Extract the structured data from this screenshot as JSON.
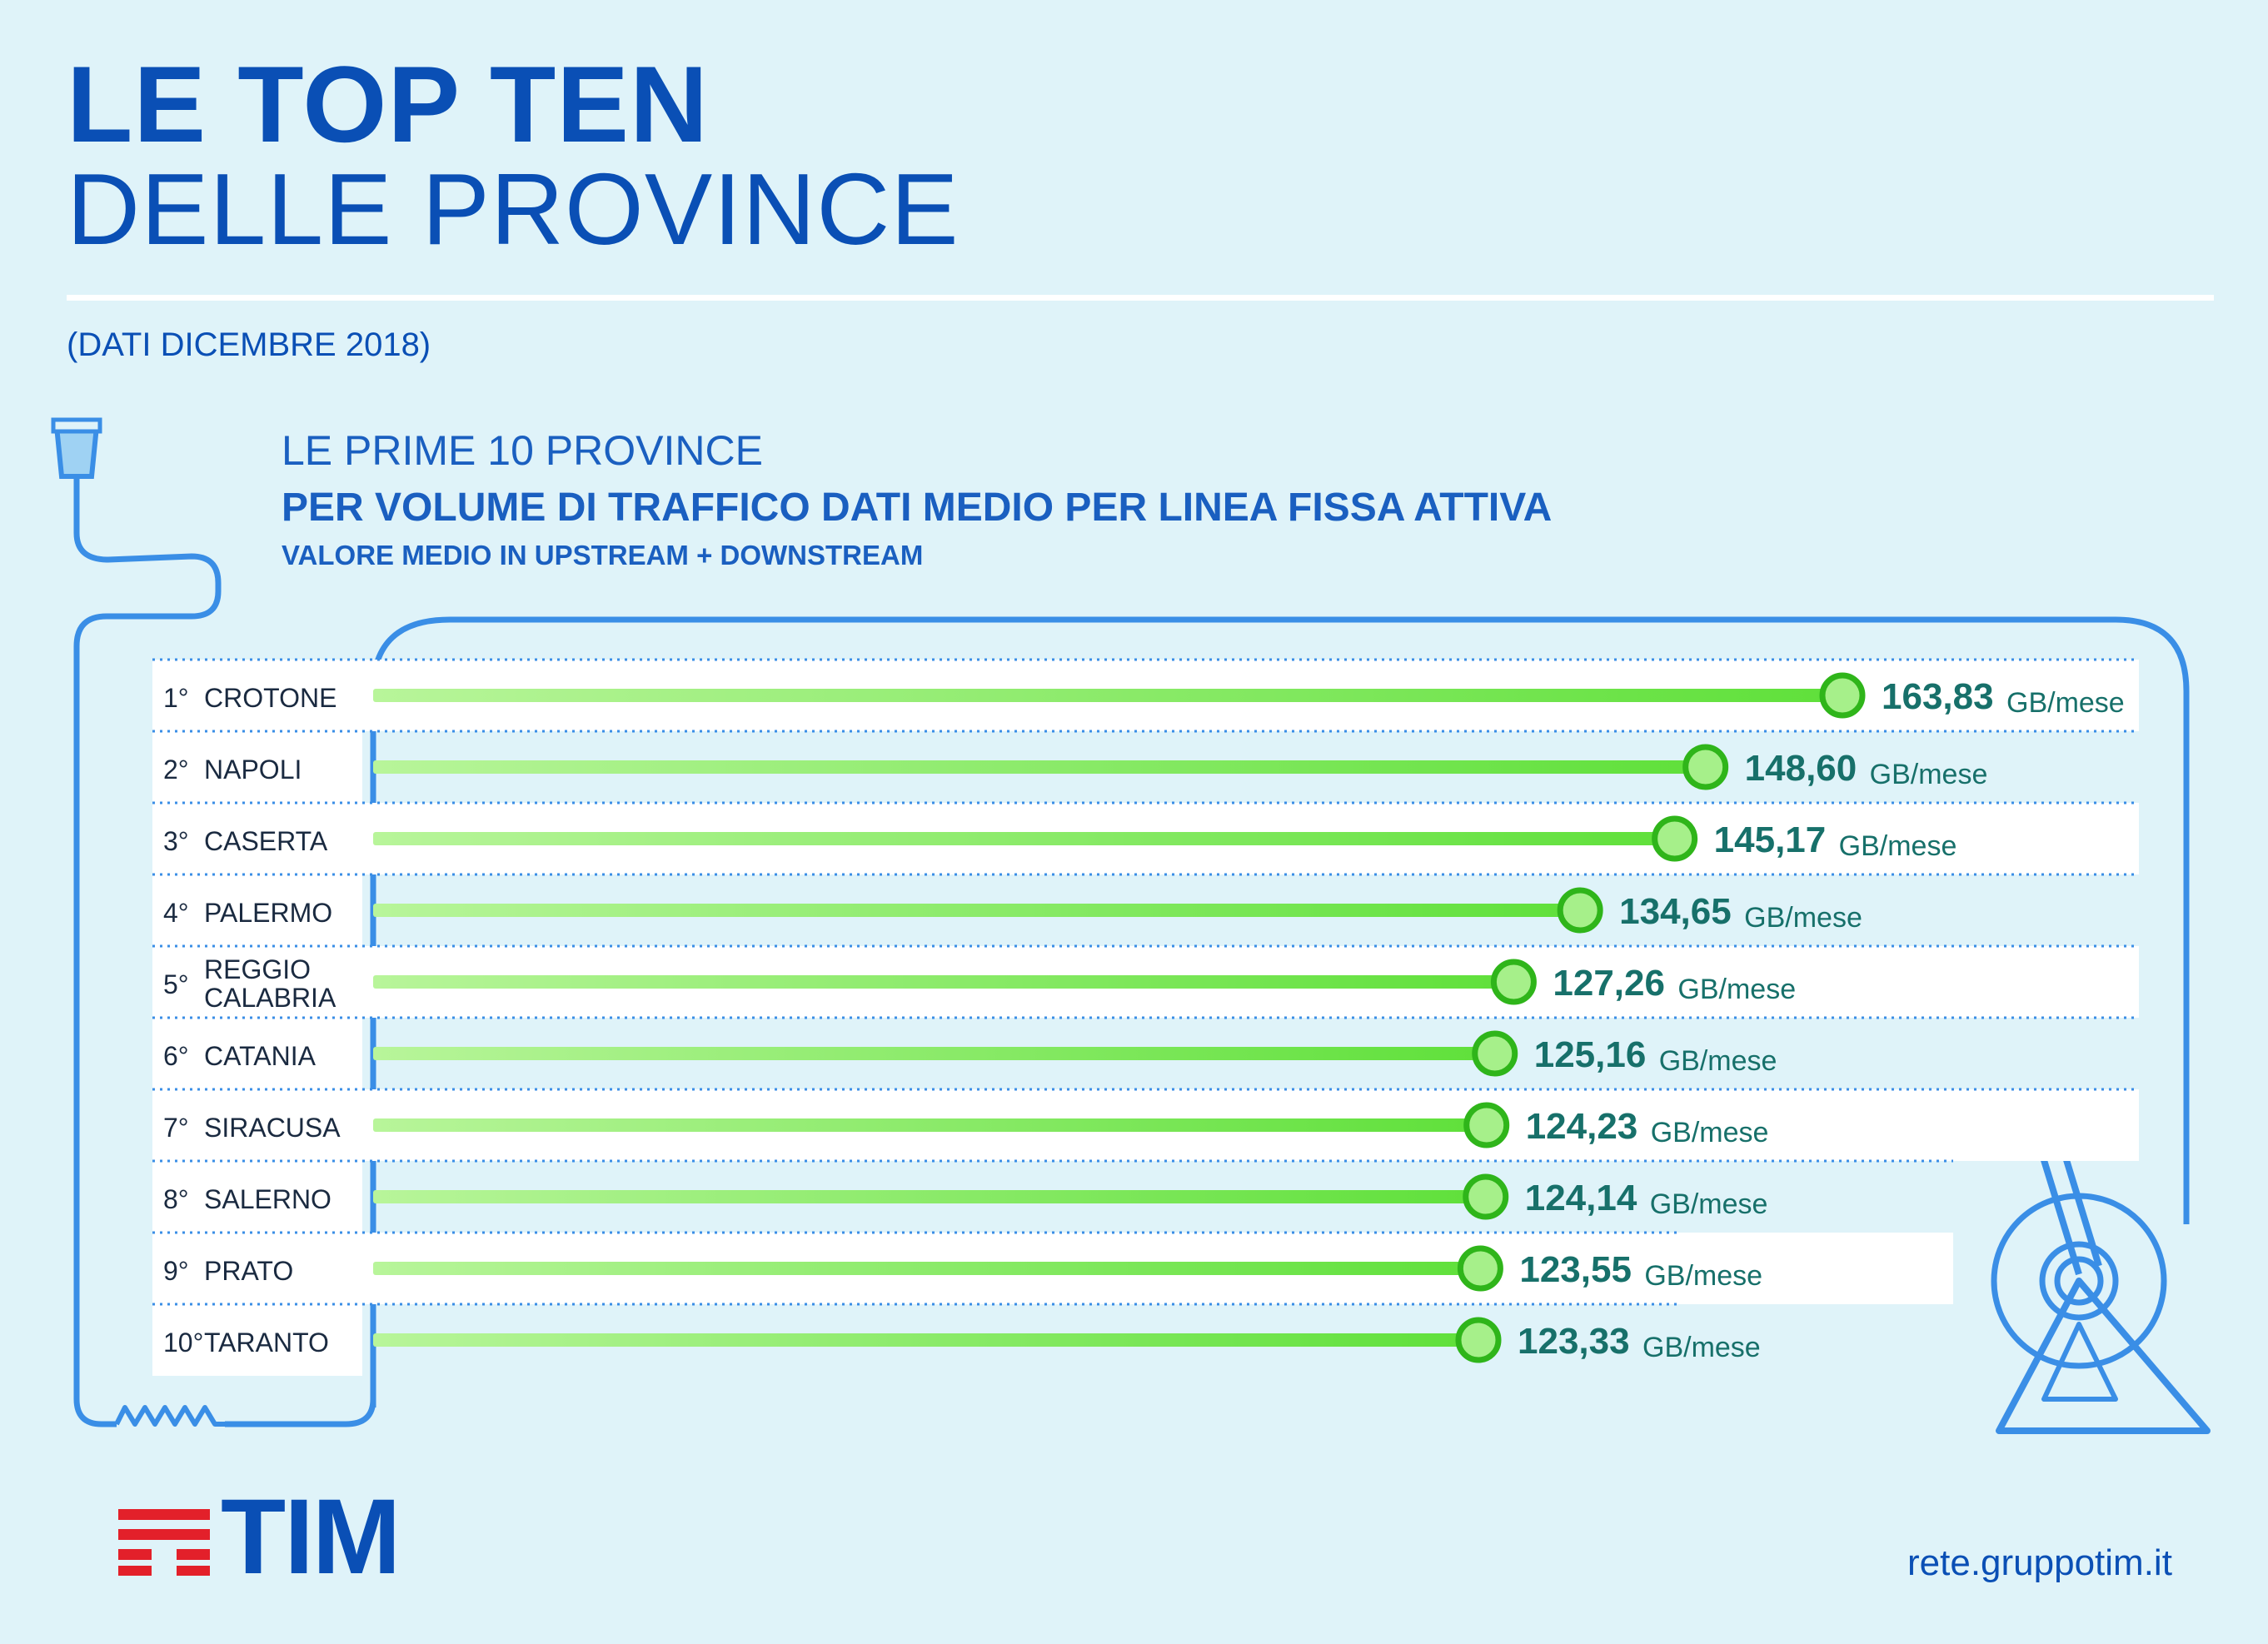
{
  "header": {
    "title_line1": "LE TOP TEN",
    "title_line2": "DELLE PROVINCE",
    "date_note": "(DATI DICEMBRE 2018)"
  },
  "subtitle": {
    "line1": "LE PRIME 10 PROVINCE",
    "line2": "PER VOLUME DI TRAFFICO DATI MEDIO PER LINEA FISSA ATTIVA",
    "line3": "VALORE MEDIO IN UPSTREAM + DOWNSTREAM"
  },
  "chart_data": {
    "type": "bar",
    "unit": "GB/mese",
    "ranks": [
      "1°",
      "2°",
      "3°",
      "4°",
      "5°",
      "6°",
      "7°",
      "8°",
      "9°",
      "10°"
    ],
    "categories": [
      "CROTONE",
      "NAPOLI",
      "CASERTA",
      "PALERMO",
      "REGGIO CALABRIA",
      "CATANIA",
      "SIRACUSA",
      "SALERNO",
      "PRATO",
      "TARANTO"
    ],
    "values": [
      163.83,
      148.6,
      145.17,
      134.65,
      127.26,
      125.16,
      124.23,
      124.14,
      123.55,
      123.33
    ],
    "value_labels": [
      "163,83",
      "148,60",
      "145,17",
      "134,65",
      "127,26",
      "125,16",
      "124,23",
      "124,14",
      "123,55",
      "123,33"
    ],
    "colors": {
      "bar": "#5fe03a",
      "bar_light": "#b8f59a",
      "marker_fill": "#a6f08a",
      "marker_stroke": "#2fb51a",
      "value_text": "#17706a",
      "unit_text": "#17706a",
      "cable": "#3a8ee6"
    }
  },
  "footer": {
    "logo_text": "TIM",
    "link": "rete.gruppotim.it",
    "logo_colors": {
      "red": "#e3202a",
      "blue": "#0a4fb5"
    }
  }
}
